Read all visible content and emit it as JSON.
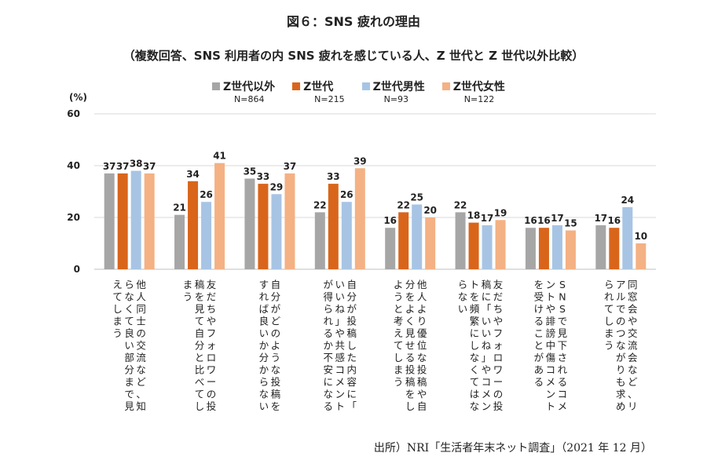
{
  "title": "図６：SNS 疲れの理由",
  "subtitle": "（複数回答、SNS 利用者の内 SNS 疲れを感じている人、Z 世代と Z 世代以外比較）",
  "unit_label": "(%)",
  "source": "出所）NRI「生活者年末ネット調査」（2021 年 12 月）",
  "chart_data": {
    "type": "bar",
    "title": "図６：SNS 疲れの理由",
    "ylabel": "(%)",
    "ylim": [
      0,
      60
    ],
    "yticks": [
      0,
      20,
      40,
      60
    ],
    "grid": true,
    "legend_position": "top",
    "categories": [
      "他人同士の交流など、知らなくて良い部分まで見えてしまう",
      "友だちやフォロワーの投稿を見て自分と比べてしまう",
      "自分がどのような投稿をすれば良いか分からない",
      "自分が投稿した内容に「いいね」や共感コメントが得られるか不安になる",
      "他人より優位な投稿や自分をよく見せる投稿をしようと考えてしまう",
      "友だちやフォロワーの投稿に「いいね」やコメントを頻繁にしなくてはならない",
      "SNSで見下されるコメントや誹謗中傷コメントを受けることがある",
      "同窓会や交流会など、リアルでのつながりも求められてしまう"
    ],
    "series": [
      {
        "name": "Z世代以外",
        "n": "N=864",
        "color": "#a6a6a6",
        "values": [
          37,
          21,
          35,
          22,
          16,
          22,
          16,
          17
        ]
      },
      {
        "name": "Z世代",
        "n": "N=215",
        "color": "#d9651b",
        "values": [
          37,
          34,
          33,
          33,
          22,
          18,
          16,
          16
        ]
      },
      {
        "name": "Z世代男性",
        "n": "N=93",
        "color": "#a7c4e4",
        "values": [
          38,
          26,
          29,
          26,
          25,
          17,
          17,
          24
        ]
      },
      {
        "name": "Z世代女性",
        "n": "N=122",
        "color": "#f4b183",
        "values": [
          37,
          41,
          37,
          39,
          20,
          19,
          15,
          10
        ]
      }
    ]
  }
}
